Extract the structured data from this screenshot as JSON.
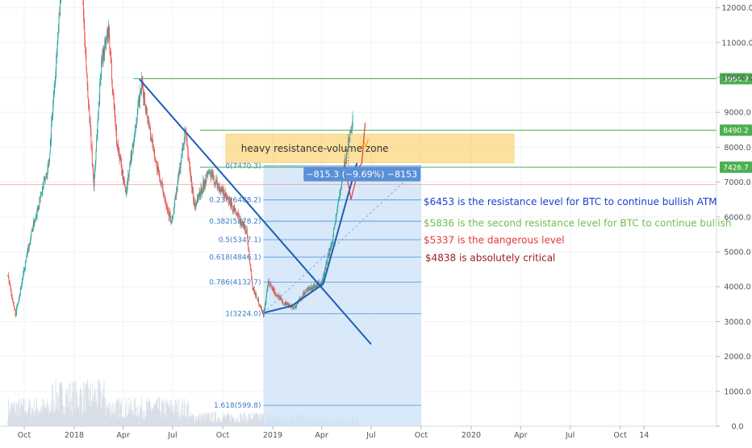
{
  "chart_data": {
    "type": "candlestick",
    "title": "",
    "xlabel": "",
    "ylabel": "",
    "ylim": [
      -200,
      12500
    ],
    "y_ticks": [
      "12000.0",
      "11000.0",
      "10000.0",
      "9000.0",
      "8000.0",
      "7000.0",
      "6000.0",
      "5000.0",
      "4000.0",
      "3000.0",
      "2000.0",
      "1000.0",
      "0.0"
    ],
    "y_tick_values": [
      12000,
      11000,
      10000,
      9000,
      8000,
      7000,
      6000,
      5000,
      4000,
      3000,
      2000,
      1000,
      0
    ],
    "x_ticks": [
      "Oct",
      "2018",
      "Apr",
      "Jul",
      "Oct",
      "2019",
      "Apr",
      "Jul",
      "Oct",
      "2020",
      "Apr",
      "Jul",
      "Oct",
      "14"
    ],
    "x_tick_dates": [
      "2017-10-01",
      "2018-01-01",
      "2018-04-01",
      "2018-07-01",
      "2018-10-01",
      "2019-01-01",
      "2019-04-01",
      "2019-07-01",
      "2019-10-01",
      "2020-01-01",
      "2020-04-01",
      "2020-07-01",
      "2020-10-01",
      "2020-11-14"
    ],
    "price_key_points": [
      {
        "date": "2017-09-01",
        "price": 4300
      },
      {
        "date": "2017-09-15",
        "price": 3200
      },
      {
        "date": "2017-10-15",
        "price": 5600
      },
      {
        "date": "2017-11-15",
        "price": 7500
      },
      {
        "date": "2017-12-10",
        "price": 13000
      },
      {
        "date": "2017-12-20",
        "price": 15000
      },
      {
        "date": "2018-01-05",
        "price": 16500
      },
      {
        "date": "2018-01-20",
        "price": 11000
      },
      {
        "date": "2018-02-06",
        "price": 6900
      },
      {
        "date": "2018-02-20",
        "price": 10500
      },
      {
        "date": "2018-03-05",
        "price": 11300
      },
      {
        "date": "2018-03-20",
        "price": 8200
      },
      {
        "date": "2018-04-06",
        "price": 6700
      },
      {
        "date": "2018-05-05",
        "price": 9800
      },
      {
        "date": "2018-06-01",
        "price": 7500
      },
      {
        "date": "2018-06-29",
        "price": 5800
      },
      {
        "date": "2018-07-24",
        "price": 8450
      },
      {
        "date": "2018-08-10",
        "price": 6300
      },
      {
        "date": "2018-09-05",
        "price": 7300
      },
      {
        "date": "2018-10-10",
        "price": 6500
      },
      {
        "date": "2018-11-14",
        "price": 5600
      },
      {
        "date": "2018-11-25",
        "price": 4000
      },
      {
        "date": "2018-12-15",
        "price": 3200
      },
      {
        "date": "2018-12-24",
        "price": 4100
      },
      {
        "date": "2019-01-20",
        "price": 3550
      },
      {
        "date": "2019-02-10",
        "price": 3400
      },
      {
        "date": "2019-03-01",
        "price": 3850
      },
      {
        "date": "2019-04-01",
        "price": 4100
      },
      {
        "date": "2019-04-20",
        "price": 5300
      },
      {
        "date": "2019-05-13",
        "price": 7500
      },
      {
        "date": "2019-05-28",
        "price": 8800
      }
    ],
    "volume_scale_note": "",
    "horizontal_levels": [
      {
        "price": 9964.9,
        "label": "9964.9",
        "color": "#4caf50",
        "start_date": "2018-04-20"
      },
      {
        "price": 8490.2,
        "label": "8490.2",
        "color": "#4caf50",
        "start_date": "2018-08-20"
      },
      {
        "price": 7426.7,
        "label": "7426.7",
        "color": "#4caf50",
        "start_date": "2018-08-20"
      }
    ],
    "current_price_line": {
      "price": 6930,
      "color": "#f28b82"
    },
    "resistance_zone": {
      "label": "heavy resistance-volume zone",
      "date_from": "2018-09-01",
      "date_to": "2020-03-20",
      "price_from": 7550,
      "price_to": 8380,
      "color": "#f9c74f"
    },
    "fibonacci": {
      "date_from": "2018-12-15",
      "date_to": "2019-10-01",
      "color": "#4a90d9",
      "levels": [
        {
          "label": "0(7470.3)",
          "price": 7470.3
        },
        {
          "label": "0.236(6488.2)",
          "price": 6488.2
        },
        {
          "label": "0.382(5878.2)",
          "price": 5878.2
        },
        {
          "label": "0.5(5347.1)",
          "price": 5347.1
        },
        {
          "label": "0.618(4846.1)",
          "price": 4846.1
        },
        {
          "label": "0.786(4132.7)",
          "price": 4132.7
        },
        {
          "label": "1(3224.0)",
          "price": 3224.0
        },
        {
          "label": "1.618(599.8)",
          "price": 599.8
        }
      ]
    },
    "trend_lines": [
      {
        "from": {
          "date": "2018-05-01",
          "price": 9950
        },
        "to": {
          "date": "2019-07-01",
          "price": 2350
        },
        "color": "#1e5eb5"
      },
      {
        "from": {
          "date": "2018-12-15",
          "price": 3250
        },
        "to": {
          "date": "2019-04-04",
          "price": 4080
        },
        "color": "#1e5eb5",
        "via": [
          {
            "date": "2019-02-05",
            "price": 3450
          }
        ]
      },
      {
        "from": {
          "date": "2019-04-04",
          "price": 4080
        },
        "to": {
          "date": "2019-06-05",
          "price": 7550
        },
        "color": "#1e5eb5"
      }
    ],
    "dashed_line": {
      "from": {
        "date": "2018-12-15",
        "price": 3250
      },
      "to": {
        "date": "2019-10-01",
        "price": 7470
      },
      "color": "#7fb0e6"
    },
    "measure_label": {
      "text": "−815.3 (−9.69%) −8153",
      "date": "2019-05-15",
      "price": 7230,
      "color": "#5b8fd6"
    },
    "projection_path": [
      {
        "date": "2019-05-13",
        "price": 7550
      },
      {
        "date": "2019-05-25",
        "price": 6500
      },
      {
        "date": "2019-06-08",
        "price": 7400
      },
      {
        "date": "2019-06-14",
        "price": 7550
      },
      {
        "date": "2019-06-20",
        "price": 8700
      }
    ],
    "annotations": [
      {
        "text": "$6453 is the resistance level for BTC to continue bullish ATM",
        "color": "#1a3fd1",
        "date": "2019-10-01",
        "price": 6430
      },
      {
        "text": "$5836 is the second resistance level for BTC to continue bullish",
        "color": "#6fbf4d",
        "date": "2019-10-01",
        "price": 5820
      },
      {
        "text": "$5337 is the dangerous level",
        "color": "#e53935",
        "date": "2019-10-01",
        "price": 5330
      },
      {
        "text": "$4838 is absolutely critical",
        "color": "#9b1a1a",
        "date": "2019-10-04",
        "price": 4830
      }
    ]
  }
}
